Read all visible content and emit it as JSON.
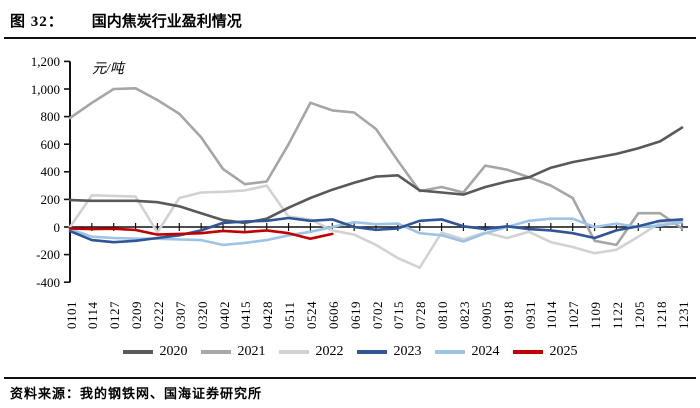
{
  "figure": {
    "label": "图 32：",
    "title": "国内焦炭行业盈利情况"
  },
  "source": "资料来源：我的钢铁网、国海证券研究所",
  "chart_data": {
    "type": "line",
    "title": "国内焦炭行业盈利情况",
    "unit_label": "元/吨",
    "xlabel": "",
    "ylabel": "元/吨",
    "ylim": [
      -400,
      1200
    ],
    "ytick_step": 200,
    "ytick_labels": [
      "-400",
      "-200",
      "0",
      "200",
      "400",
      "600",
      "800",
      "1,000",
      "1,200"
    ],
    "grid": false,
    "legend_position": "bottom",
    "categories": [
      "0101",
      "0114",
      "0127",
      "0209",
      "0222",
      "0307",
      "0320",
      "0402",
      "0415",
      "0428",
      "0511",
      "0524",
      "0606",
      "0619",
      "0702",
      "0715",
      "0728",
      "0810",
      "0823",
      "0905",
      "0918",
      "0931",
      "1014",
      "1027",
      "1109",
      "1122",
      "1205",
      "1218",
      "1231"
    ],
    "series": [
      {
        "name": "2020",
        "color": "#595959",
        "values": [
          195,
          190,
          190,
          190,
          180,
          150,
          100,
          50,
          30,
          60,
          140,
          210,
          270,
          320,
          365,
          375,
          265,
          250,
          235,
          290,
          330,
          360,
          430,
          470,
          500,
          530,
          570,
          620,
          720
        ]
      },
      {
        "name": "2021",
        "color": "#a6a6a6",
        "values": [
          790,
          900,
          1000,
          1005,
          920,
          820,
          650,
          420,
          310,
          330,
          600,
          900,
          845,
          830,
          710,
          480,
          260,
          290,
          250,
          445,
          415,
          360,
          300,
          210,
          -100,
          -130,
          100,
          100,
          -10
        ]
      },
      {
        "name": "2022",
        "color": "#d2d2d2",
        "values": [
          0,
          230,
          225,
          220,
          -40,
          210,
          250,
          255,
          265,
          300,
          75,
          55,
          -25,
          -55,
          -130,
          -225,
          -295,
          -40,
          -90,
          -40,
          -80,
          -35,
          -110,
          -145,
          -190,
          -165,
          -70,
          30,
          50
        ]
      },
      {
        "name": "2023",
        "color": "#2f5597",
        "values": [
          -30,
          -95,
          -110,
          -100,
          -80,
          -60,
          -25,
          30,
          40,
          45,
          65,
          45,
          55,
          0,
          -20,
          -10,
          45,
          55,
          5,
          -15,
          5,
          -15,
          -25,
          -45,
          -80,
          -25,
          5,
          45,
          55
        ]
      },
      {
        "name": "2024",
        "color": "#9dc3e6",
        "values": [
          -15,
          -70,
          -80,
          -85,
          -85,
          -90,
          -95,
          -130,
          -115,
          -95,
          -60,
          -35,
          0,
          35,
          20,
          25,
          -45,
          -60,
          -105,
          -45,
          0,
          45,
          60,
          60,
          0,
          25,
          0,
          10,
          35
        ]
      },
      {
        "name": "2025",
        "color": "#c00000",
        "values": [
          -10,
          -15,
          -12,
          -22,
          -55,
          -50,
          -45,
          -28,
          -38,
          -25,
          -45,
          -85,
          -50,
          null,
          null,
          null,
          null,
          null,
          null,
          null,
          null,
          null,
          null,
          null,
          null,
          null,
          null,
          null,
          null
        ]
      }
    ]
  }
}
